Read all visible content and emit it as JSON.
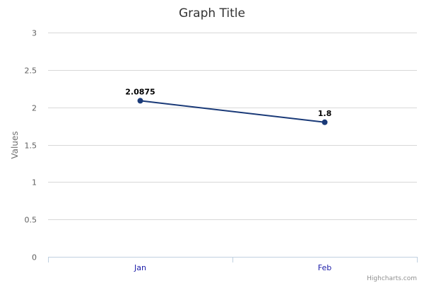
{
  "chart_data": {
    "type": "line",
    "title": "Graph Title",
    "xlabel": "",
    "ylabel": "Values",
    "categories": [
      "Jan",
      "Feb"
    ],
    "series": [
      {
        "values": [
          2.0875,
          1.8
        ],
        "data_labels": [
          "2.0875",
          "1.8"
        ],
        "color": "#1a3a78"
      }
    ],
    "ylim": [
      0,
      3
    ],
    "y_ticks": [
      0,
      0.5,
      1,
      1.5,
      2,
      2.5,
      3
    ],
    "y_tick_labels": [
      "0",
      "0.5",
      "1",
      "1.5",
      "2",
      "2.5",
      "3"
    ],
    "grid": true,
    "legend": "none"
  },
  "credits": "Highcharts.com",
  "colors": {
    "series": "#1a3a78",
    "grid": "#d8d8d8",
    "axis": "#c0d0e0",
    "x_labels": "#1c1ca8"
  }
}
